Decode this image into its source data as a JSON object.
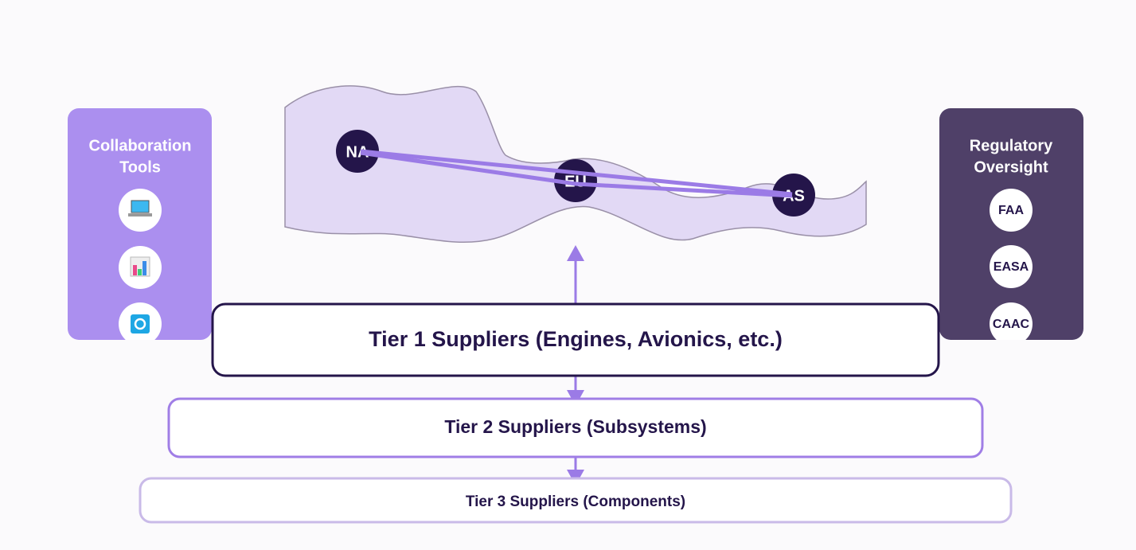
{
  "collaboration": {
    "title_lines": [
      "Collaboration",
      "Tools"
    ]
  },
  "regulatory": {
    "title_lines": [
      "Regulatory",
      "Oversight"
    ],
    "agencies": [
      "FAA",
      "EASA",
      "CAAC"
    ]
  },
  "map": {
    "nodes": [
      "NA",
      "EU",
      "AS"
    ]
  },
  "tiers": [
    "Tier 1 Suppliers (Engines, Avionics, etc.)",
    "Tier 2 Suppliers (Subsystems)",
    "Tier 3 Suppliers (Components)"
  ]
}
